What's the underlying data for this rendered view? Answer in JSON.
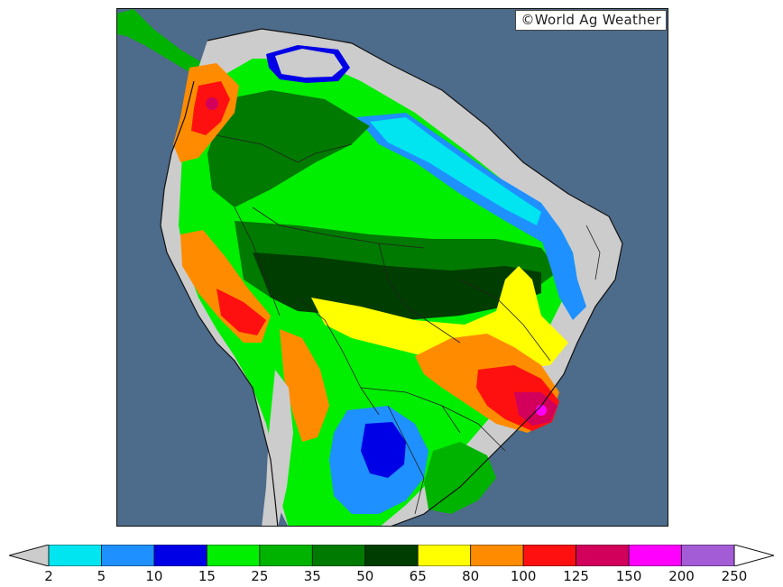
{
  "copyright": "©World Ag Weather",
  "legend": {
    "ticks": [
      "2",
      "5",
      "10",
      "15",
      "25",
      "35",
      "50",
      "65",
      "80",
      "100",
      "125",
      "150",
      "200",
      "250"
    ],
    "colors": {
      "below": "#cccccc",
      "bins": [
        "#00e5f0",
        "#1e90ff",
        "#0000e6",
        "#00ee00",
        "#00b300",
        "#007a00",
        "#003d00",
        "#ffff00",
        "#ff8c00",
        "#ff1010",
        "#d2005a",
        "#ff00ff",
        "#a35bd6"
      ],
      "above": "#ffffff"
    }
  },
  "map": {
    "ocean_color": "#4d6b8a",
    "land_dry_color": "#cccccc"
  }
}
